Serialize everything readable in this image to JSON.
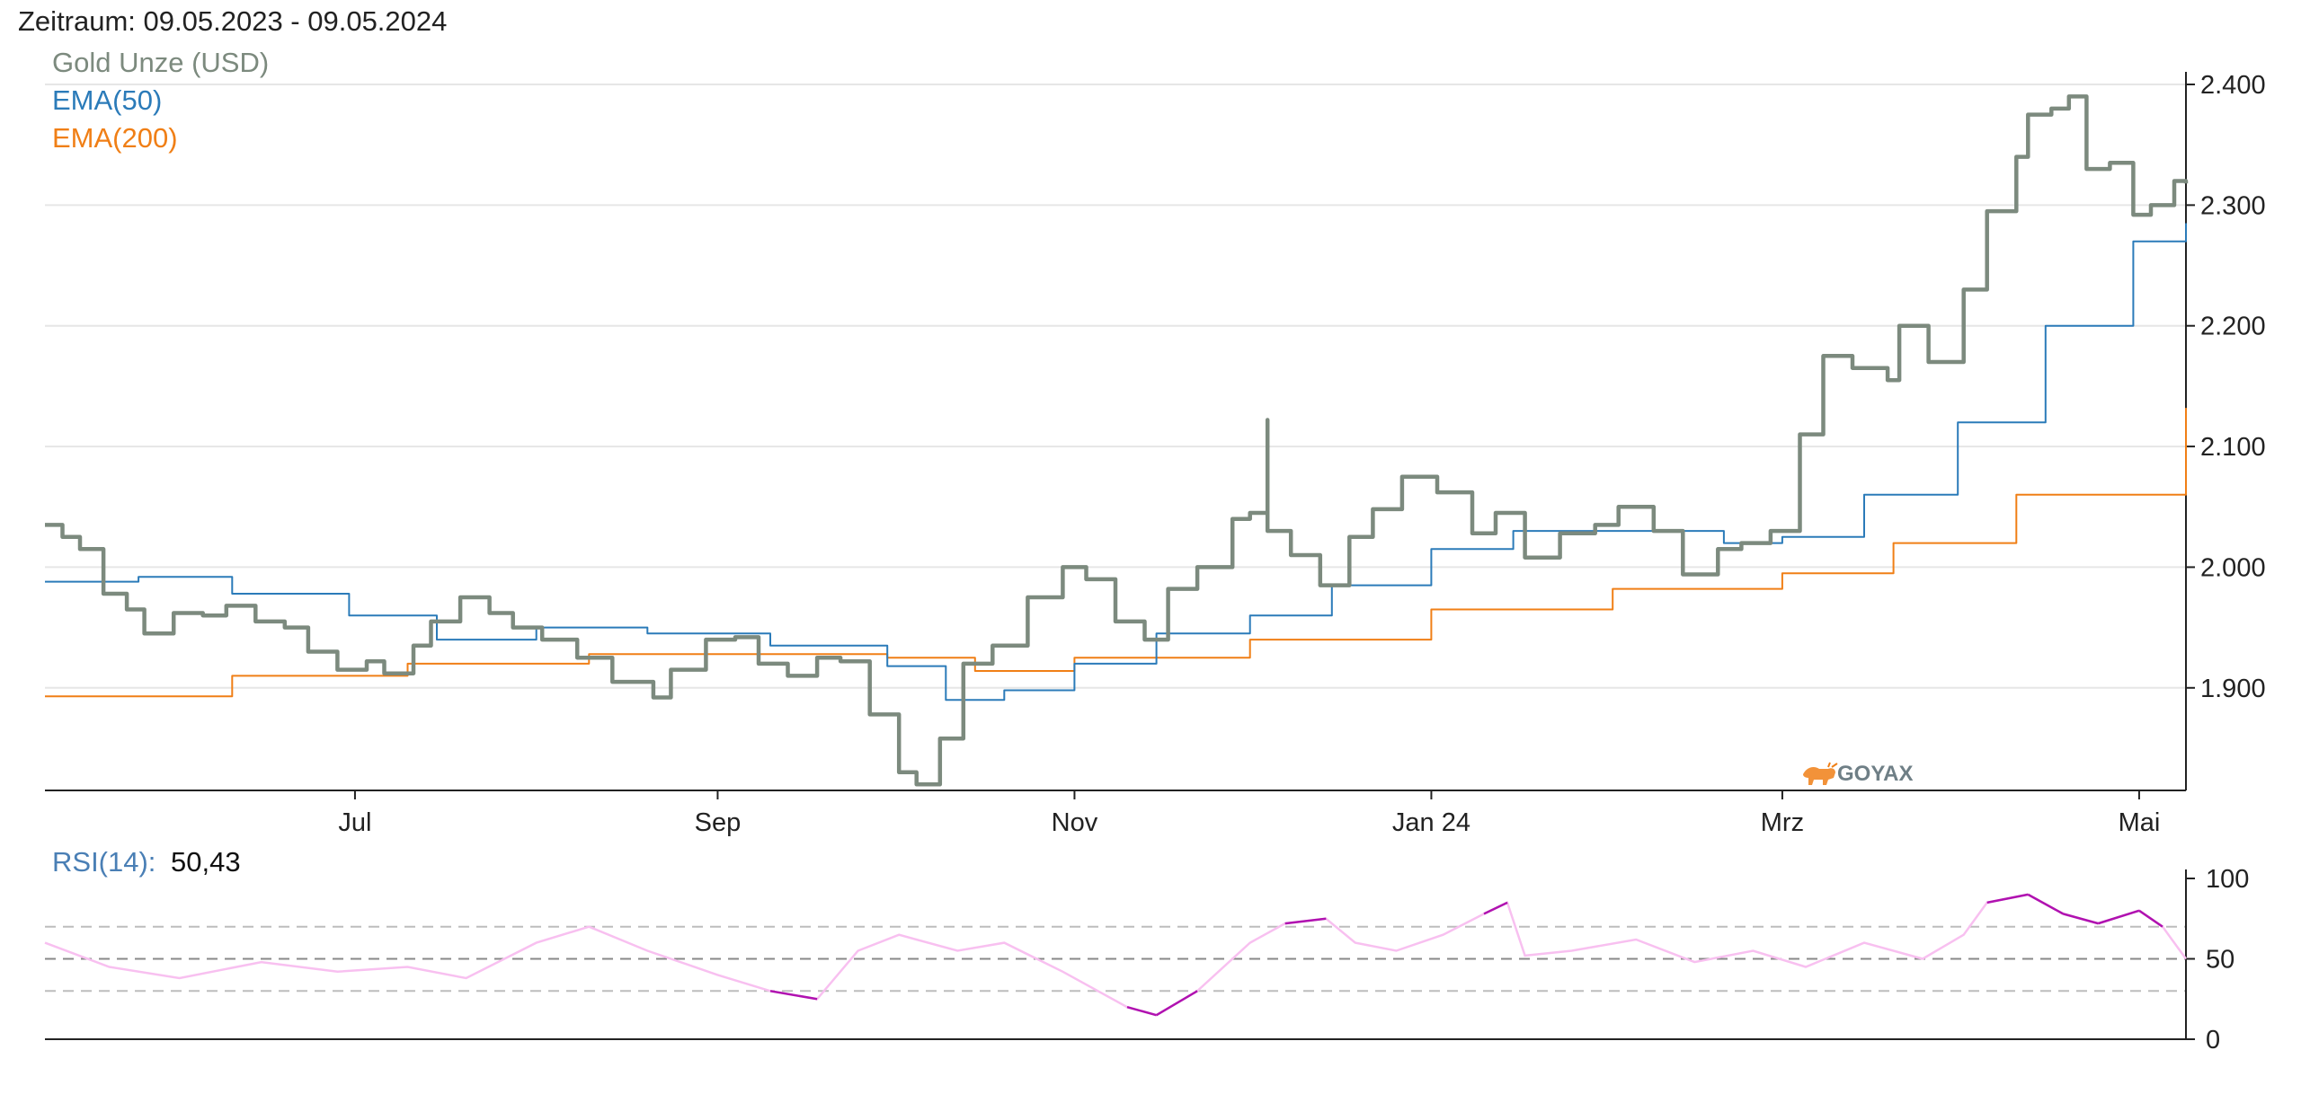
{
  "header": {
    "period_label": "Zeitraum: 09.05.2023 - 09.05.2024"
  },
  "colors": {
    "price": "#7c8a7e",
    "ema50": "#2b7bb9",
    "ema200": "#f07f16",
    "rsi_light": "#f8c0f0",
    "rsi_strong": "#b012b0",
    "grid": "#e6e6e6",
    "axis": "#222222"
  },
  "watermark": {
    "text": "GOYAX",
    "icon": "bull-logo-icon",
    "color": "#f07f16"
  },
  "chart_data": [
    {
      "type": "line",
      "x_axis_ticks": [
        "Jul",
        "Sep",
        "Nov",
        "Jan 24",
        "Mrz",
        "Mai"
      ],
      "x_range": [
        "2023-05-09",
        "2024-05-09"
      ],
      "y_ticks": [
        "2.400",
        "2.300",
        "2.200",
        "2.100",
        "2.000",
        "1.900"
      ],
      "ylim": [
        1815,
        2400
      ],
      "grid": true,
      "legend_position": "top-left",
      "series": [
        {
          "name": "Gold Unze (USD)",
          "color": "#7c8a7e",
          "points": [
            [
              "2023-05-09",
              2035
            ],
            [
              "2023-05-12",
              2025
            ],
            [
              "2023-05-15",
              2015
            ],
            [
              "2023-05-19",
              1978
            ],
            [
              "2023-05-23",
              1965
            ],
            [
              "2023-05-26",
              1945
            ],
            [
              "2023-05-31",
              1962
            ],
            [
              "2023-06-05",
              1960
            ],
            [
              "2023-06-09",
              1968
            ],
            [
              "2023-06-14",
              1955
            ],
            [
              "2023-06-19",
              1950
            ],
            [
              "2023-06-23",
              1930
            ],
            [
              "2023-06-28",
              1915
            ],
            [
              "2023-07-03",
              1922
            ],
            [
              "2023-07-06",
              1912
            ],
            [
              "2023-07-11",
              1935
            ],
            [
              "2023-07-14",
              1955
            ],
            [
              "2023-07-19",
              1975
            ],
            [
              "2023-07-24",
              1962
            ],
            [
              "2023-07-28",
              1950
            ],
            [
              "2023-08-02",
              1940
            ],
            [
              "2023-08-08",
              1925
            ],
            [
              "2023-08-14",
              1905
            ],
            [
              "2023-08-21",
              1892
            ],
            [
              "2023-08-24",
              1915
            ],
            [
              "2023-08-30",
              1940
            ],
            [
              "2023-09-04",
              1942
            ],
            [
              "2023-09-08",
              1920
            ],
            [
              "2023-09-13",
              1910
            ],
            [
              "2023-09-18",
              1925
            ],
            [
              "2023-09-22",
              1922
            ],
            [
              "2023-09-27",
              1878
            ],
            [
              "2023-10-02",
              1830
            ],
            [
              "2023-10-05",
              1820
            ],
            [
              "2023-10-09",
              1858
            ],
            [
              "2023-10-13",
              1920
            ],
            [
              "2023-10-18",
              1935
            ],
            [
              "2023-10-24",
              1975
            ],
            [
              "2023-10-30",
              2000
            ],
            [
              "2023-11-03",
              1990
            ],
            [
              "2023-11-08",
              1955
            ],
            [
              "2023-11-13",
              1940
            ],
            [
              "2023-11-17",
              1982
            ],
            [
              "2023-11-22",
              2000
            ],
            [
              "2023-11-28",
              2040
            ],
            [
              "2023-12-01",
              2045
            ],
            [
              "2023-12-04",
              2122
            ],
            [
              "2023-12-04",
              2030
            ],
            [
              "2023-12-08",
              2010
            ],
            [
              "2023-12-13",
              1985
            ],
            [
              "2023-12-18",
              2025
            ],
            [
              "2023-12-22",
              2048
            ],
            [
              "2023-12-27",
              2075
            ],
            [
              "2024-01-02",
              2062
            ],
            [
              "2024-01-08",
              2028
            ],
            [
              "2024-01-12",
              2045
            ],
            [
              "2024-01-17",
              2008
            ],
            [
              "2024-01-23",
              2028
            ],
            [
              "2024-01-29",
              2035
            ],
            [
              "2024-02-02",
              2050
            ],
            [
              "2024-02-08",
              2030
            ],
            [
              "2024-02-13",
              1994
            ],
            [
              "2024-02-19",
              2015
            ],
            [
              "2024-02-23",
              2020
            ],
            [
              "2024-02-28",
              2030
            ],
            [
              "2024-03-04",
              2110
            ],
            [
              "2024-03-08",
              2175
            ],
            [
              "2024-03-13",
              2165
            ],
            [
              "2024-03-19",
              2155
            ],
            [
              "2024-03-21",
              2200
            ],
            [
              "2024-03-26",
              2170
            ],
            [
              "2024-04-01",
              2230
            ],
            [
              "2024-04-05",
              2295
            ],
            [
              "2024-04-10",
              2340
            ],
            [
              "2024-04-12",
              2375
            ],
            [
              "2024-04-16",
              2380
            ],
            [
              "2024-04-19",
              2390
            ],
            [
              "2024-04-22",
              2330
            ],
            [
              "2024-04-26",
              2335
            ],
            [
              "2024-04-30",
              2292
            ],
            [
              "2024-05-03",
              2300
            ],
            [
              "2024-05-07",
              2320
            ],
            [
              "2024-05-09",
              2318
            ]
          ]
        },
        {
          "name": "EMA(50)",
          "color": "#2b7bb9",
          "points": [
            [
              "2023-05-09",
              1988
            ],
            [
              "2023-05-25",
              1992
            ],
            [
              "2023-06-10",
              1978
            ],
            [
              "2023-06-30",
              1960
            ],
            [
              "2023-07-15",
              1940
            ],
            [
              "2023-08-01",
              1950
            ],
            [
              "2023-08-20",
              1945
            ],
            [
              "2023-09-10",
              1935
            ],
            [
              "2023-09-30",
              1918
            ],
            [
              "2023-10-10",
              1890
            ],
            [
              "2023-10-20",
              1898
            ],
            [
              "2023-11-01",
              1920
            ],
            [
              "2023-11-15",
              1945
            ],
            [
              "2023-12-01",
              1960
            ],
            [
              "2023-12-15",
              1985
            ],
            [
              "2024-01-01",
              2015
            ],
            [
              "2024-01-15",
              2030
            ],
            [
              "2024-02-01",
              2030
            ],
            [
              "2024-02-20",
              2020
            ],
            [
              "2024-03-01",
              2025
            ],
            [
              "2024-03-15",
              2060
            ],
            [
              "2024-03-31",
              2120
            ],
            [
              "2024-04-15",
              2200
            ],
            [
              "2024-04-30",
              2270
            ],
            [
              "2024-05-09",
              2285
            ]
          ]
        },
        {
          "name": "EMA(200)",
          "color": "#f07f16",
          "points": [
            [
              "2023-05-09",
              1893
            ],
            [
              "2023-06-10",
              1910
            ],
            [
              "2023-07-10",
              1920
            ],
            [
              "2023-08-10",
              1928
            ],
            [
              "2023-09-10",
              1928
            ],
            [
              "2023-09-30",
              1925
            ],
            [
              "2023-10-15",
              1914
            ],
            [
              "2023-11-01",
              1925
            ],
            [
              "2023-12-01",
              1940
            ],
            [
              "2024-01-01",
              1965
            ],
            [
              "2024-02-01",
              1982
            ],
            [
              "2024-03-01",
              1995
            ],
            [
              "2024-03-20",
              2020
            ],
            [
              "2024-04-10",
              2060
            ],
            [
              "2024-05-09",
              2132
            ]
          ]
        }
      ]
    },
    {
      "type": "line",
      "legend_label": "RSI(14):",
      "current_value": "50,43",
      "y_ticks": [
        "100",
        "50",
        "0"
      ],
      "ylim": [
        0,
        100
      ],
      "reference_lines": [
        30,
        50,
        70
      ],
      "series": [
        {
          "name": "RSI(14)",
          "color": "#f8c0f0",
          "overbought_oversold_color": "#b012b0",
          "points": [
            [
              "2023-05-09",
              60
            ],
            [
              "2023-05-20",
              45
            ],
            [
              "2023-06-01",
              38
            ],
            [
              "2023-06-15",
              48
            ],
            [
              "2023-06-28",
              42
            ],
            [
              "2023-07-10",
              45
            ],
            [
              "2023-07-20",
              38
            ],
            [
              "2023-08-01",
              60
            ],
            [
              "2023-08-10",
              70
            ],
            [
              "2023-08-20",
              55
            ],
            [
              "2023-09-01",
              40
            ],
            [
              "2023-09-10",
              30
            ],
            [
              "2023-09-18",
              25
            ],
            [
              "2023-09-25",
              55
            ],
            [
              "2023-10-02",
              65
            ],
            [
              "2023-10-12",
              55
            ],
            [
              "2023-10-20",
              60
            ],
            [
              "2023-10-30",
              42
            ],
            [
              "2023-11-10",
              20
            ],
            [
              "2023-11-15",
              15
            ],
            [
              "2023-11-22",
              30
            ],
            [
              "2023-12-01",
              60
            ],
            [
              "2023-12-07",
              72
            ],
            [
              "2023-12-14",
              75
            ],
            [
              "2023-12-19",
              60
            ],
            [
              "2023-12-26",
              55
            ],
            [
              "2024-01-03",
              65
            ],
            [
              "2024-01-10",
              78
            ],
            [
              "2024-01-14",
              85
            ],
            [
              "2024-01-17",
              52
            ],
            [
              "2024-01-25",
              55
            ],
            [
              "2024-02-05",
              62
            ],
            [
              "2024-02-15",
              48
            ],
            [
              "2024-02-25",
              55
            ],
            [
              "2024-03-05",
              45
            ],
            [
              "2024-03-15",
              60
            ],
            [
              "2024-03-25",
              50
            ],
            [
              "2024-04-01",
              65
            ],
            [
              "2024-04-05",
              85
            ],
            [
              "2024-04-12",
              90
            ],
            [
              "2024-04-18",
              78
            ],
            [
              "2024-04-24",
              72
            ],
            [
              "2024-05-01",
              80
            ],
            [
              "2024-05-05",
              70
            ],
            [
              "2024-05-09",
              50
            ]
          ]
        }
      ]
    }
  ]
}
